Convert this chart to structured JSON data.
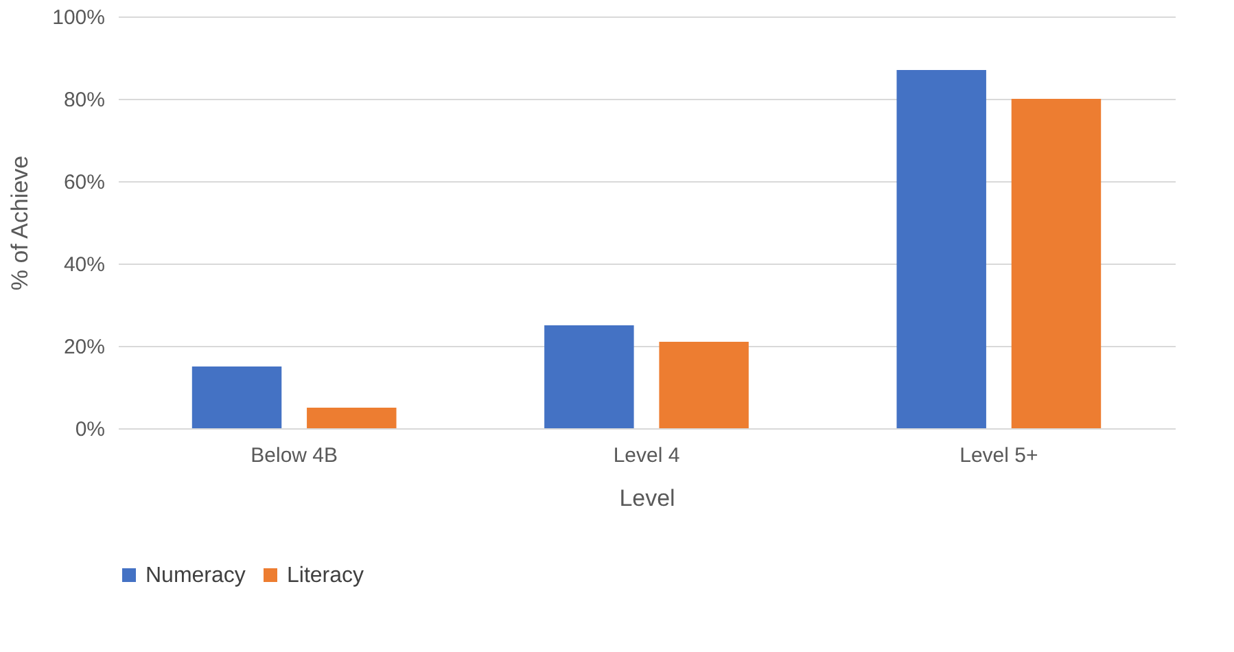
{
  "chart_data": {
    "type": "bar",
    "xlabel": "Level",
    "ylabel": "% of Achieve",
    "categories": [
      "Below 4B",
      "Level 4",
      "Level 5+"
    ],
    "series": [
      {
        "name": "Numeracy",
        "color": "#4472c4",
        "values": [
          15,
          25,
          87
        ]
      },
      {
        "name": "Literacy",
        "color": "#ed7d31",
        "values": [
          5,
          21,
          80
        ]
      }
    ],
    "ylim": [
      0,
      100
    ],
    "yticks": [
      {
        "value": 0,
        "label": "0%"
      },
      {
        "value": 20,
        "label": "20%"
      },
      {
        "value": 40,
        "label": "40%"
      },
      {
        "value": 60,
        "label": "60%"
      },
      {
        "value": 80,
        "label": "80%"
      },
      {
        "value": 100,
        "label": "100%"
      }
    ],
    "grid": "y",
    "legend": "bottom"
  }
}
